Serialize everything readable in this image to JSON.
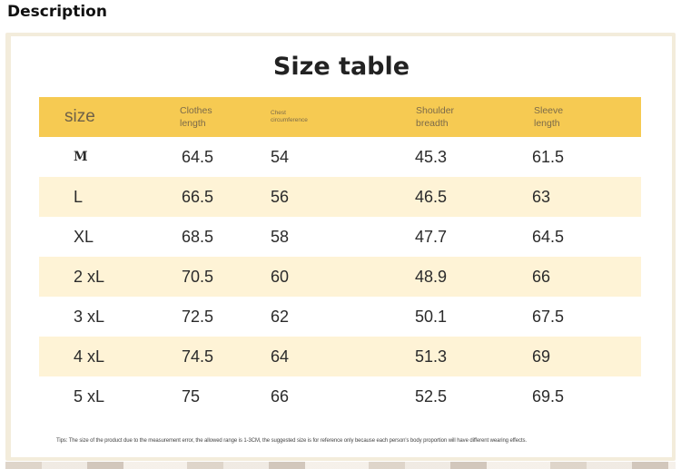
{
  "section": {
    "heading": "Description"
  },
  "size_table": {
    "title": "Size table",
    "headers": [
      "size",
      "Clothes length",
      "Chest circumference",
      "Shoulder breadth",
      "Sleeve length"
    ],
    "rows": [
      [
        "M",
        "64.5",
        "54",
        "45.3",
        "61.5"
      ],
      [
        "L",
        "66.5",
        "56",
        "46.5",
        "63"
      ],
      [
        "XL",
        "68.5",
        "58",
        "47.7",
        "64.5"
      ],
      [
        "2 xL",
        "70.5",
        "60",
        "48.9",
        "66"
      ],
      [
        "3 xL",
        "72.5",
        "62",
        "50.1",
        "67.5"
      ],
      [
        "4 xL",
        "74.5",
        "64",
        "51.3",
        "69"
      ],
      [
        "5 xL",
        "75",
        "66",
        "52.5",
        "69.5"
      ]
    ],
    "tips": "Tips: The size of the product due to the measurement error, the allowed range is 1-3CM, the suggested size is for reference only because each person's body proportion will have different wearing effects."
  },
  "colors": {
    "header_band": "#f6ca52",
    "alt_row": "#fef3d6"
  }
}
